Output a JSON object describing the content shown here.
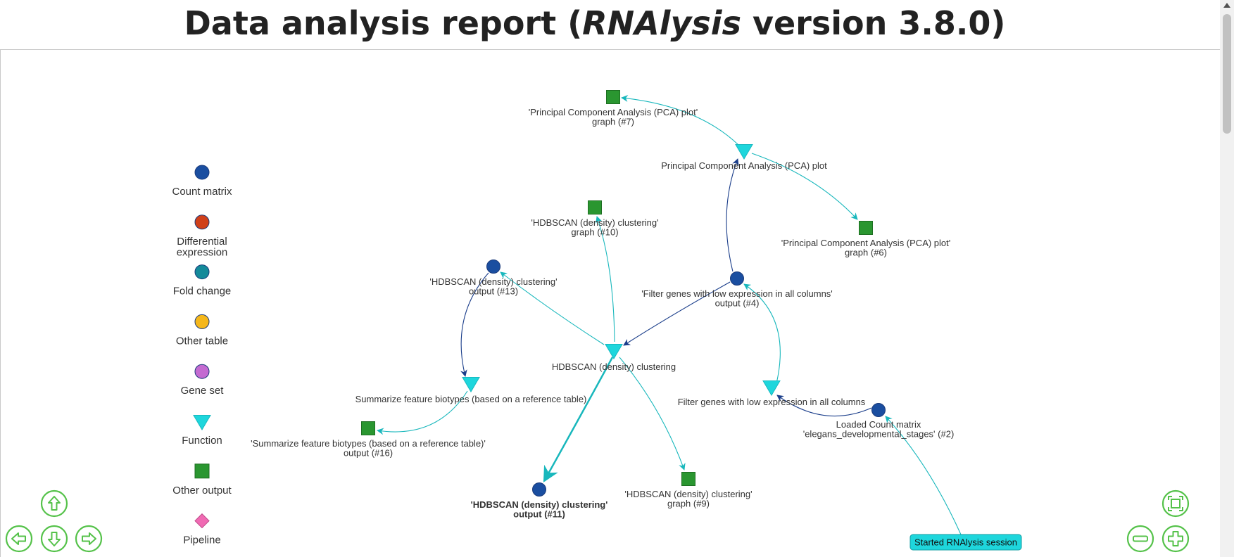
{
  "header": {
    "title_prefix": "Data analysis report (",
    "title_app": "RNAlysis",
    "title_suffix": " version 3.8.0)"
  },
  "colors": {
    "count_matrix": "#1a4ea0",
    "differential_expression": "#d0401a",
    "fold_change": "#148a9a",
    "other_table": "#f5b71b",
    "gene_set": "#c46bd1",
    "function": "#1ed6dc",
    "other_output": "#2a9630",
    "pipeline": "#f06ab3",
    "edge_teal": "#18b7bc",
    "edge_navy": "#1a3d8a",
    "nav_green": "#55c24a"
  },
  "legend": [
    {
      "label_lines": [
        "Count matrix"
      ],
      "shape": "circle",
      "color": "#1a4ea0"
    },
    {
      "label_lines": [
        "Differential",
        "expression"
      ],
      "shape": "circle",
      "color": "#d0401a"
    },
    {
      "label_lines": [
        "Fold change"
      ],
      "shape": "circle",
      "color": "#148a9a"
    },
    {
      "label_lines": [
        "Other table"
      ],
      "shape": "circle",
      "color": "#f5b71b"
    },
    {
      "label_lines": [
        "Gene set"
      ],
      "shape": "circle",
      "color": "#c46bd1"
    },
    {
      "label_lines": [
        "Function"
      ],
      "shape": "triangle",
      "color": "#1ed6dc"
    },
    {
      "label_lines": [
        "Other output"
      ],
      "shape": "square",
      "color": "#2a9630"
    },
    {
      "label_lines": [
        "Pipeline"
      ],
      "shape": "diamond",
      "color": "#f06ab3"
    }
  ],
  "nodes": [
    {
      "id": "pca_graph7",
      "type": "square",
      "label_lines": [
        "'Principal Component Analysis (PCA) plot'",
        "graph (#7)"
      ]
    },
    {
      "id": "pca_func",
      "type": "triangle",
      "label_lines": [
        "Principal Component Analysis (PCA) plot"
      ]
    },
    {
      "id": "pca_graph6",
      "type": "square",
      "label_lines": [
        "'Principal Component Analysis (PCA) plot'",
        "graph (#6)"
      ]
    },
    {
      "id": "hdb_graph10",
      "type": "square",
      "label_lines": [
        "'HDBSCAN (density) clustering'",
        "graph (#10)"
      ]
    },
    {
      "id": "hdb_out13",
      "type": "circle",
      "label_lines": [
        "'HDBSCAN (density) clustering'",
        "output (#13)"
      ]
    },
    {
      "id": "filter_out4",
      "type": "circle",
      "label_lines": [
        "'Filter genes with low expression in all columns'",
        "output (#4)"
      ]
    },
    {
      "id": "hdb_func",
      "type": "triangle",
      "label_lines": [
        "HDBSCAN (density) clustering"
      ]
    },
    {
      "id": "summ_func",
      "type": "triangle",
      "label_lines": [
        "Summarize feature biotypes (based on a reference table)"
      ]
    },
    {
      "id": "summ_out16",
      "type": "square",
      "label_lines": [
        "'Summarize feature biotypes (based on a reference table)'",
        "output (#16)"
      ]
    },
    {
      "id": "filter_func",
      "type": "triangle",
      "label_lines": [
        "Filter genes with low expression in all columns"
      ]
    },
    {
      "id": "loaded2",
      "type": "circle",
      "label_lines": [
        "Loaded Count matrix",
        "'elegans_developmental_stages' (#2)"
      ]
    },
    {
      "id": "hdb_out11",
      "type": "circle",
      "selected": true,
      "label_lines": [
        "'HDBSCAN (density) clustering'",
        "output (#11)"
      ]
    },
    {
      "id": "hdb_graph9",
      "type": "square",
      "label_lines": [
        "'HDBSCAN (density) clustering'",
        "graph (#9)"
      ]
    },
    {
      "id": "session",
      "type": "box",
      "label_lines": [
        "Started RNAlysis session"
      ]
    }
  ],
  "edges": [
    {
      "from": "session",
      "to": "loaded2"
    },
    {
      "from": "loaded2",
      "to": "filter_func"
    },
    {
      "from": "filter_func",
      "to": "filter_out4"
    },
    {
      "from": "filter_out4",
      "to": "pca_func"
    },
    {
      "from": "pca_func",
      "to": "pca_graph7"
    },
    {
      "from": "pca_func",
      "to": "pca_graph6"
    },
    {
      "from": "filter_out4",
      "to": "hdb_func"
    },
    {
      "from": "hdb_func",
      "to": "hdb_graph10"
    },
    {
      "from": "hdb_func",
      "to": "hdb_out13"
    },
    {
      "from": "hdb_func",
      "to": "hdb_out11"
    },
    {
      "from": "hdb_func",
      "to": "hdb_graph9"
    },
    {
      "from": "hdb_out13",
      "to": "summ_func"
    },
    {
      "from": "summ_func",
      "to": "summ_out16"
    }
  ],
  "navigation": {
    "up": "arrow-up-icon",
    "left": "arrow-left-icon",
    "down": "arrow-down-icon",
    "right": "arrow-right-icon",
    "fit": "fit-view-icon",
    "zoom_out": "zoom-out-icon",
    "zoom_in": "zoom-in-icon"
  }
}
